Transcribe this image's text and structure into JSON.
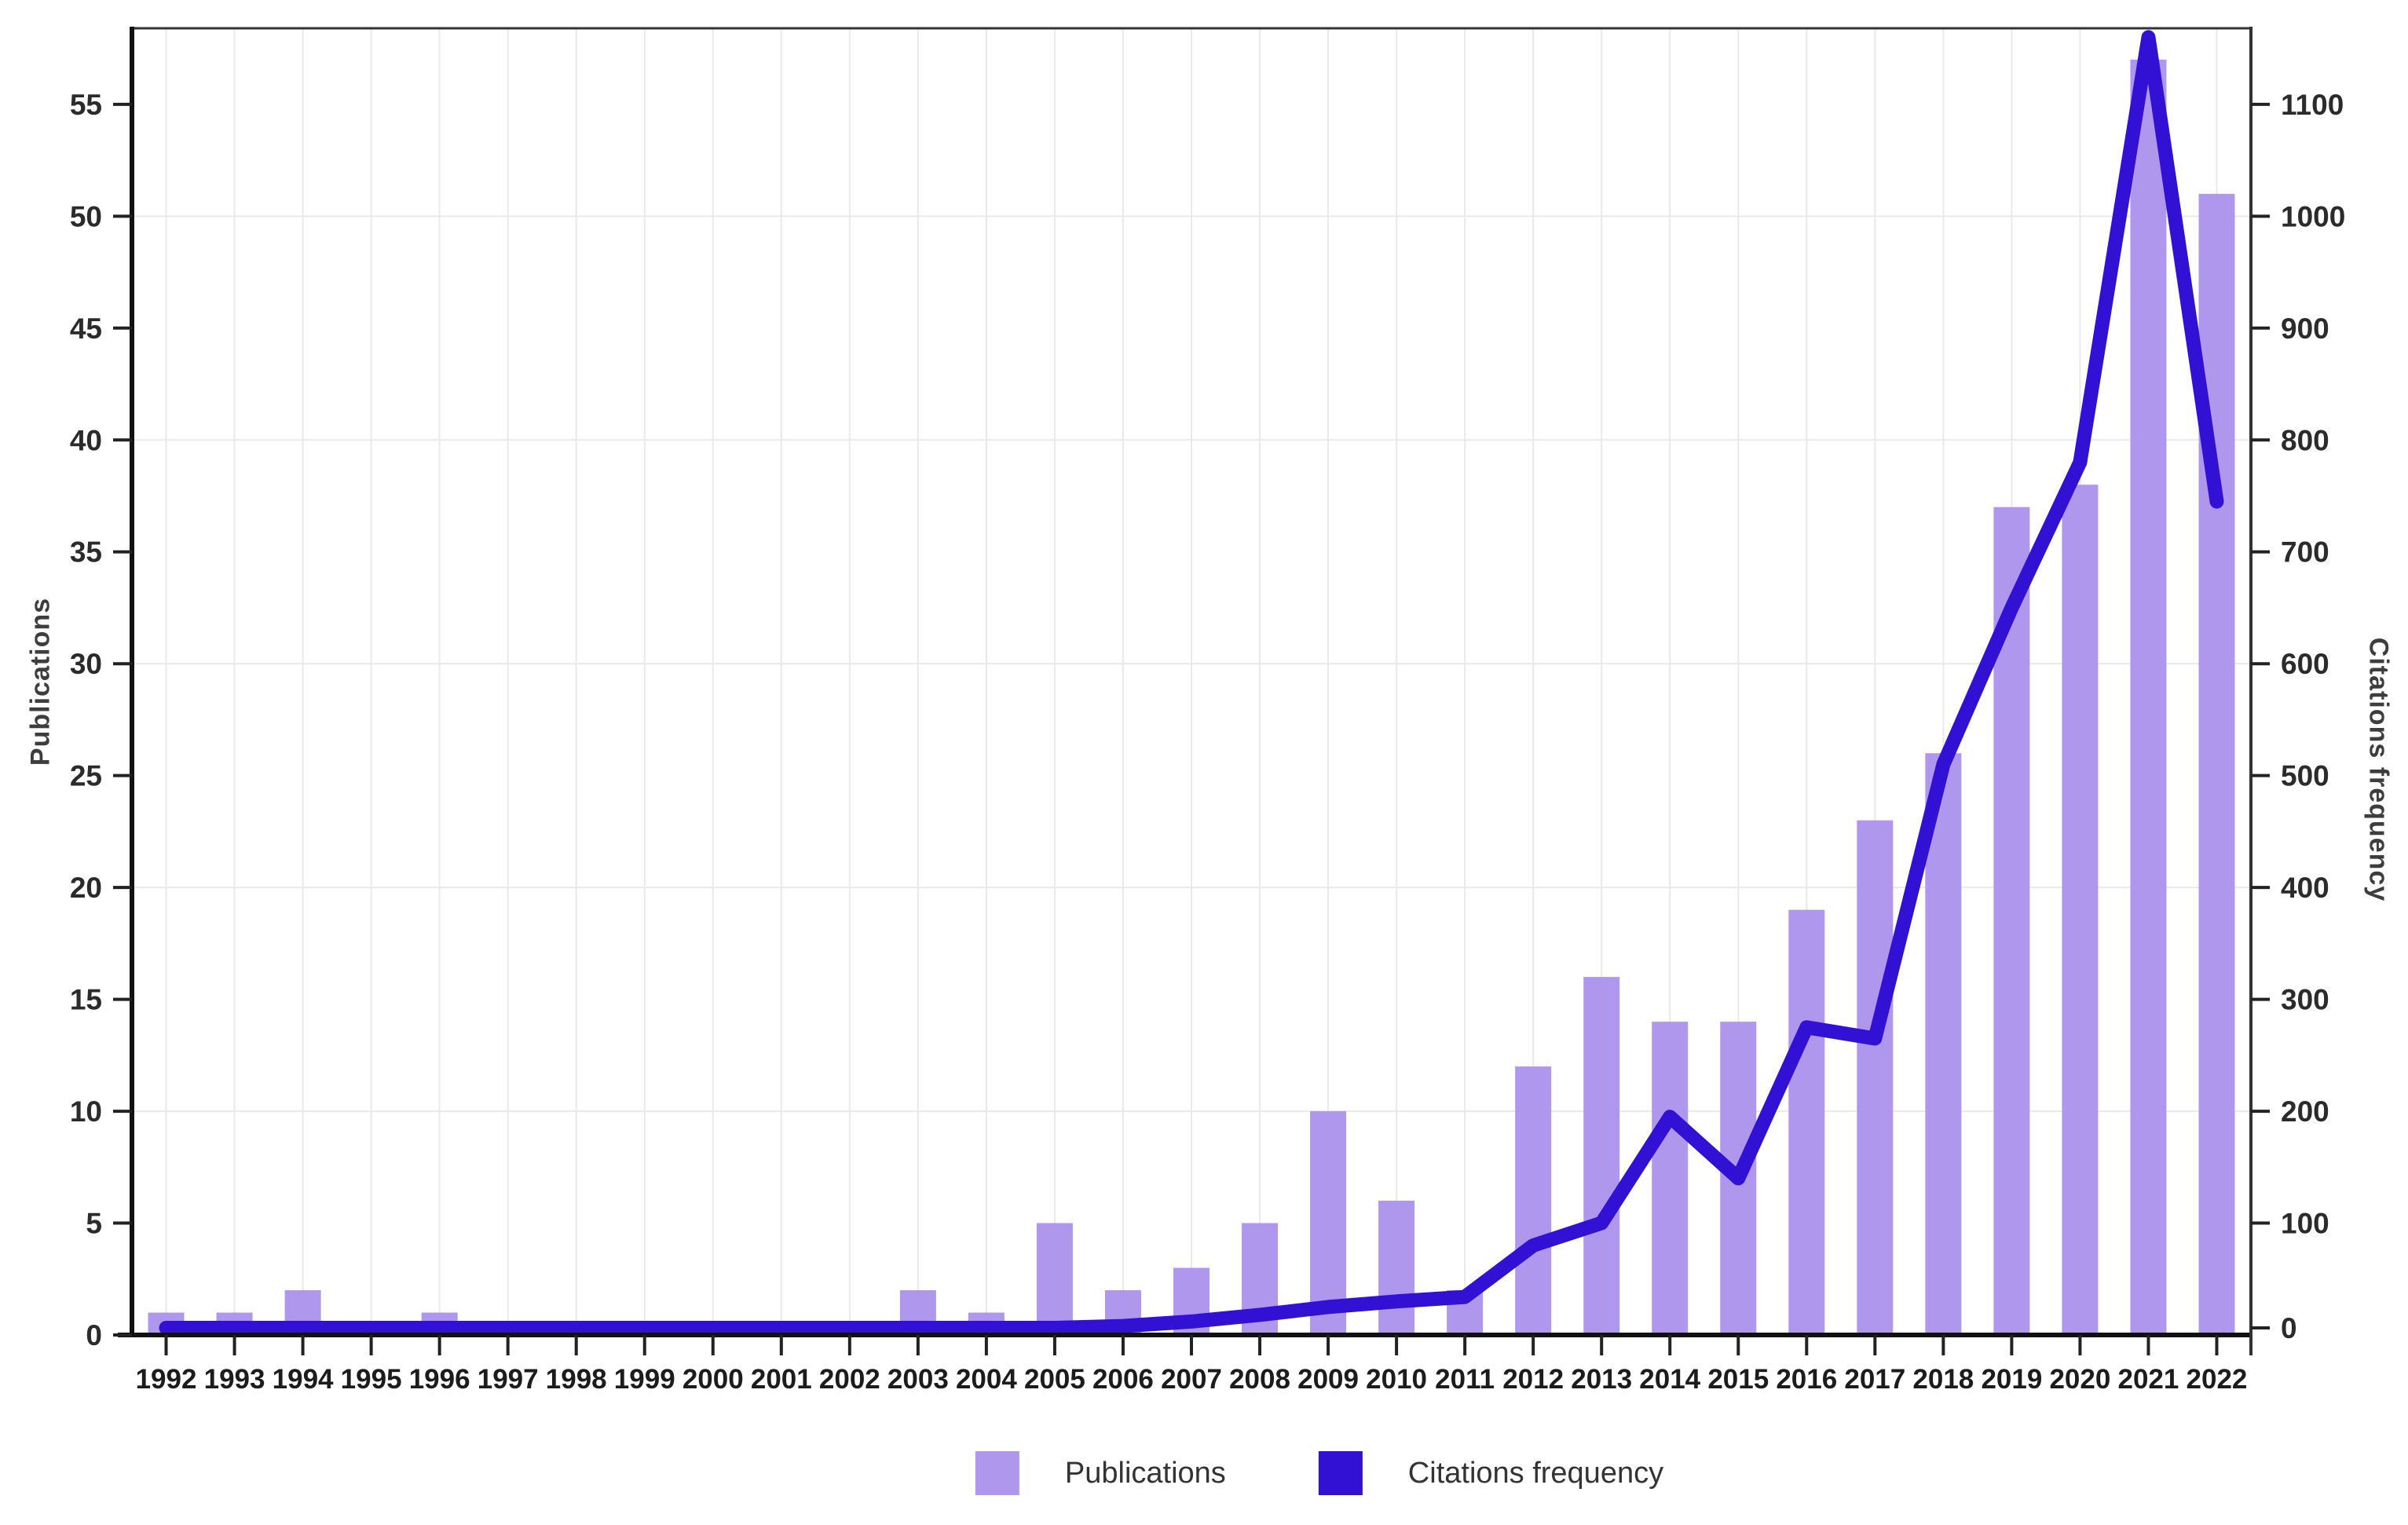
{
  "chart_data": {
    "type": "bar+line combo",
    "categories": [
      "1992",
      "1993",
      "1994",
      "1995",
      "1996",
      "1997",
      "1998",
      "1999",
      "2000",
      "2001",
      "2002",
      "2003",
      "2004",
      "2005",
      "2006",
      "2007",
      "2008",
      "2009",
      "2010",
      "2011",
      "2012",
      "2013",
      "2014",
      "2015",
      "2016",
      "2017",
      "2018",
      "2019",
      "2020",
      "2021",
      "2022"
    ],
    "series": [
      {
        "name": "Publications",
        "type": "bar",
        "axis": "left",
        "color": "#af97ed",
        "values": [
          1,
          1,
          2,
          0,
          1,
          0,
          0,
          0,
          0,
          0,
          0,
          2,
          1,
          5,
          2,
          3,
          5,
          10,
          6,
          2,
          12,
          16,
          14,
          14,
          19,
          23,
          26,
          37,
          38,
          57,
          51
        ]
      },
      {
        "name": "Citations frequency",
        "type": "line",
        "axis": "right",
        "color": "#3311d4",
        "values": [
          0,
          0,
          0,
          0,
          0,
          0,
          0,
          0,
          0,
          0,
          0,
          2,
          3,
          5,
          8,
          12,
          18,
          25,
          30,
          34,
          80,
          100,
          195,
          140,
          275,
          265,
          510,
          650,
          780,
          1160,
          745
        ]
      }
    ],
    "left_axis": {
      "title": "Publications",
      "ticks": [
        0,
        5,
        10,
        15,
        20,
        25,
        30,
        35,
        40,
        45,
        50,
        55
      ],
      "range": [
        0,
        58.4
      ]
    },
    "right_axis": {
      "title": "Citations frequency",
      "ticks": [
        0,
        100,
        200,
        300,
        400,
        500,
        600,
        700,
        800,
        900,
        1000,
        1100
      ],
      "range": [
        0,
        1168
      ]
    },
    "grid": {
      "horizontal_gridlines_at_left_values": [
        10,
        20,
        30,
        40,
        50
      ],
      "vertical_gridlines": "one per year",
      "grid_color": "#e9e9e9"
    },
    "legend": {
      "position": "bottom-center",
      "items": [
        "Publications",
        "Citations frequency"
      ]
    },
    "title": "",
    "xlabel": ""
  },
  "axis_titles": {
    "left": "Publications",
    "right": "Citations frequency"
  },
  "legend": {
    "publications_label": "Publications",
    "citations_label": "Citations frequency"
  },
  "colors": {
    "bar": "#af97ed",
    "line": "#3311d4",
    "axis": "#1a1a1a",
    "tick_text": "#2b2b2b",
    "grid": "#e9e9e9"
  }
}
